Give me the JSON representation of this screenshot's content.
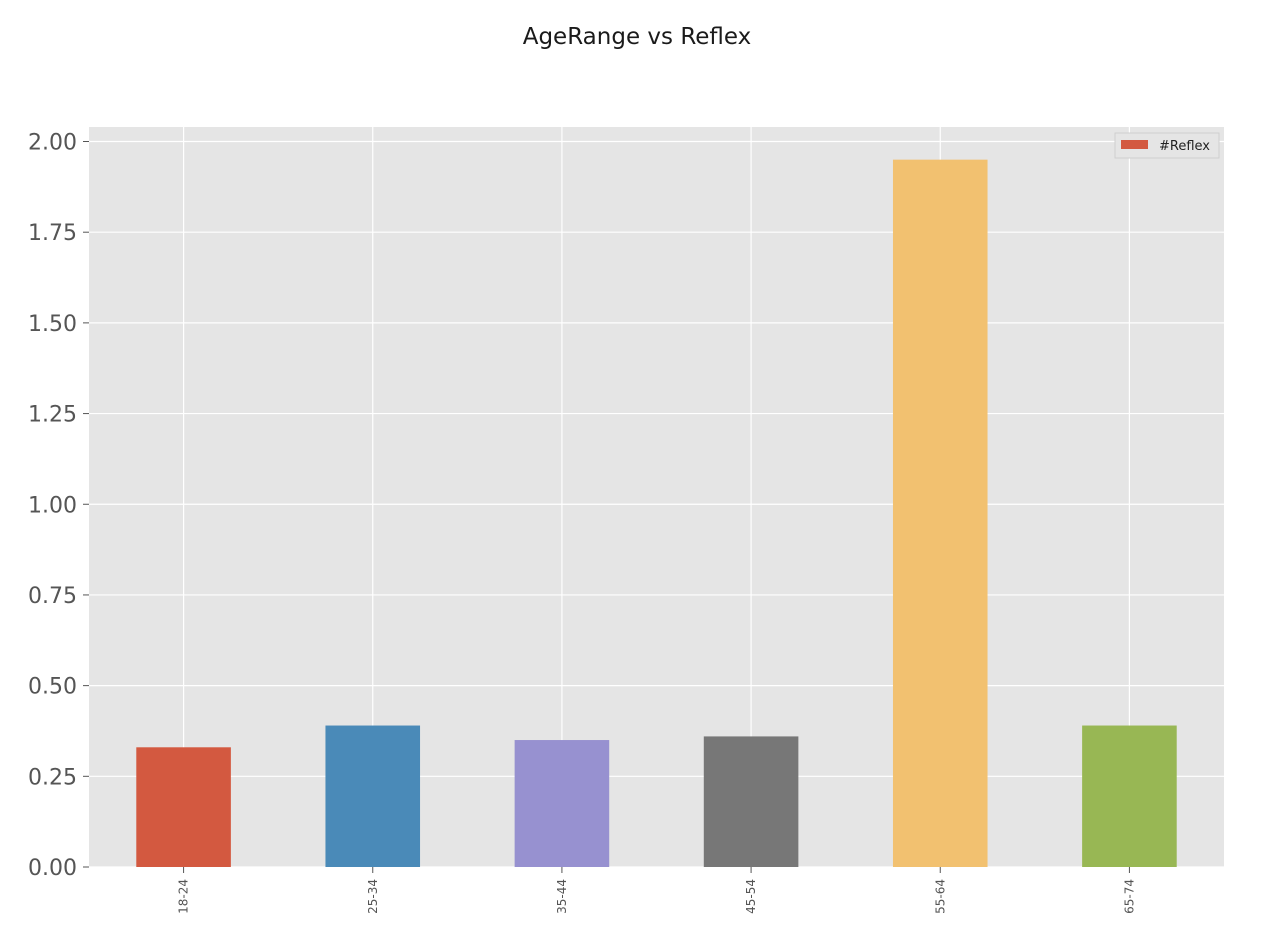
{
  "chart_data": {
    "type": "bar",
    "title": "AgeRange vs Reflex",
    "xlabel": "",
    "ylabel": "",
    "categories": [
      "18-24",
      "25-34",
      "35-44",
      "45-54",
      "55-64",
      "65-74"
    ],
    "series": [
      {
        "name": "#Reflex",
        "values": [
          0.33,
          0.39,
          0.35,
          0.36,
          1.95,
          0.39
        ]
      }
    ],
    "bar_colors": [
      "#d35940",
      "#4a8ab8",
      "#9791d0",
      "#777777",
      "#f2c170",
      "#98b754"
    ],
    "ylim": [
      0,
      2.04
    ],
    "yticks": [
      "0.00",
      "0.25",
      "0.50",
      "0.75",
      "1.00",
      "1.25",
      "1.50",
      "1.75",
      "2.00"
    ],
    "grid": true,
    "legend_position": "top-right",
    "colors": {
      "plot_background": "#e5e5e5",
      "grid": "#ffffff",
      "legend_swatch": "#d35940"
    }
  }
}
